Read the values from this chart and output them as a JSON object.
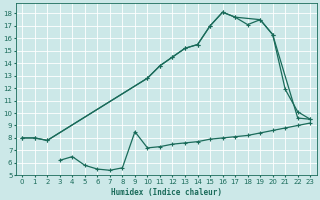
{
  "bg_color": "#cce8e8",
  "grid_color": "#ffffff",
  "line_color": "#1a6b5a",
  "marker": "+",
  "marker_size": 3,
  "linewidth": 0.9,
  "xlabel": "Humidex (Indice chaleur)",
  "xlim": [
    -0.5,
    23.5
  ],
  "ylim": [
    5,
    18.8
  ],
  "xticks": [
    0,
    1,
    2,
    3,
    4,
    5,
    6,
    7,
    8,
    9,
    10,
    11,
    12,
    13,
    14,
    15,
    16,
    17,
    18,
    19,
    20,
    21,
    22,
    23
  ],
  "yticks": [
    5,
    6,
    7,
    8,
    9,
    10,
    11,
    12,
    13,
    14,
    15,
    16,
    17,
    18
  ],
  "curve1_x": [
    0,
    1,
    2,
    10,
    11,
    12,
    13,
    14,
    15,
    16,
    17,
    19,
    20,
    22,
    23
  ],
  "curve1_y": [
    8.0,
    8.0,
    7.8,
    12.8,
    13.8,
    14.5,
    15.2,
    15.5,
    17.0,
    18.1,
    17.7,
    17.5,
    16.3,
    9.6,
    9.5
  ],
  "curve2_x": [
    0,
    1,
    2,
    10,
    11,
    12,
    13,
    14,
    15,
    16,
    17,
    18,
    19,
    20,
    21,
    22,
    23
  ],
  "curve2_y": [
    8.0,
    8.0,
    7.8,
    12.8,
    13.8,
    14.5,
    15.2,
    15.5,
    17.0,
    18.1,
    17.7,
    17.1,
    17.5,
    16.3,
    11.9,
    10.1,
    9.5
  ],
  "curve3_x": [
    3,
    4,
    5,
    6,
    7,
    8,
    9,
    10,
    11,
    12,
    13,
    14,
    15,
    16,
    17,
    18,
    19,
    20,
    21,
    22,
    23
  ],
  "curve3_y": [
    6.2,
    6.5,
    5.8,
    5.5,
    5.4,
    5.6,
    8.5,
    7.2,
    7.3,
    7.5,
    7.6,
    7.7,
    7.9,
    8.0,
    8.1,
    8.2,
    8.4,
    8.6,
    8.8,
    9.0,
    9.2
  ],
  "xlabel_fontsize": 5.5,
  "tick_fontsize": 5.0
}
